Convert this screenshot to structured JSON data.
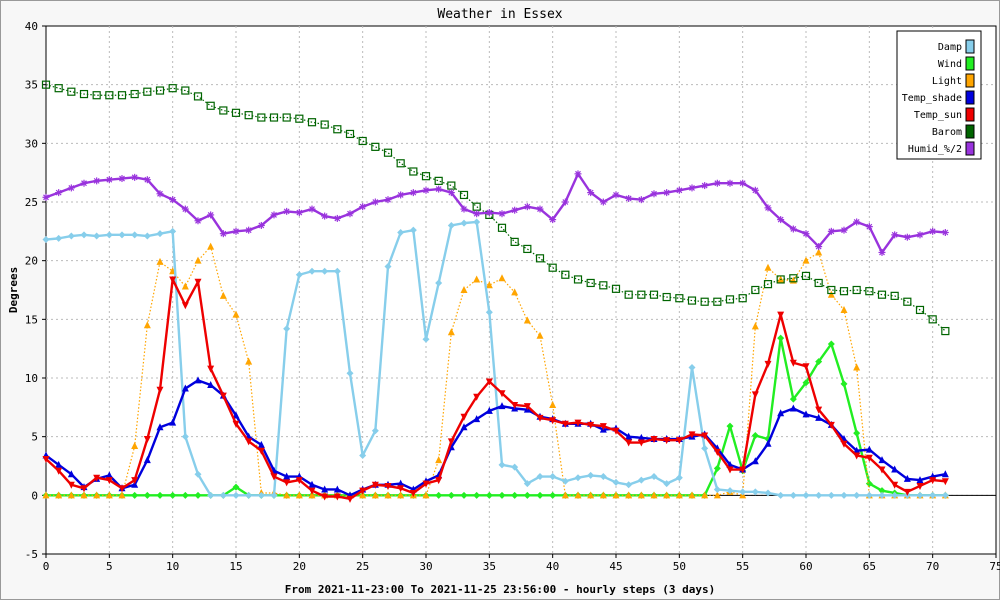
{
  "chart_data": {
    "type": "line",
    "title": "Weather in Essex",
    "xlabel": "From 2021-11-23:00 To 2021-11-25 23:56:00 - hourly steps (3 days)",
    "ylabel": "Degrees",
    "xlim": [
      0,
      75
    ],
    "ylim": [
      -5,
      40
    ],
    "xticks": [
      0,
      5,
      10,
      15,
      20,
      25,
      30,
      35,
      40,
      45,
      50,
      55,
      60,
      65,
      70,
      75
    ],
    "yticks": [
      -5,
      0,
      5,
      10,
      15,
      20,
      25,
      30,
      35,
      40
    ],
    "grid": true,
    "legend_position": "top-right",
    "series": [
      {
        "name": "Damp",
        "color": "#87ceeb",
        "style": "solid",
        "marker": "diamond",
        "values": [
          21.8,
          21.9,
          22.1,
          22.2,
          22.1,
          22.2,
          22.2,
          22.2,
          22.1,
          22.3,
          22.5,
          5.0,
          1.8,
          0.0,
          0.0,
          0.0,
          0.0,
          0.0,
          0.0,
          14.2,
          18.8,
          19.1,
          19.1,
          19.1,
          10.4,
          3.4,
          5.5,
          19.5,
          22.4,
          22.6,
          13.3,
          18.1,
          23.0,
          23.2,
          23.3,
          15.6,
          2.6,
          2.4,
          1.0,
          1.6,
          1.6,
          1.2,
          1.5,
          1.7,
          1.6,
          1.1,
          0.9,
          1.3,
          1.6,
          1.0,
          1.5,
          10.9,
          4.0,
          0.5,
          0.4,
          0.3,
          0.3,
          0.2,
          0.0,
          0.0,
          0.0,
          0.0,
          0.0,
          0.0,
          0.0,
          0.0,
          0.0,
          0.0,
          0.0,
          0.0,
          0.0,
          0.0
        ]
      },
      {
        "name": "Wind",
        "color": "#22ee22",
        "style": "solid",
        "marker": "diamond",
        "values": [
          0.0,
          0.0,
          0.0,
          0.0,
          0.0,
          0.0,
          0.0,
          0.0,
          0.0,
          0.0,
          0.0,
          0.0,
          0.0,
          0.0,
          0.0,
          0.7,
          0.0,
          0.0,
          0.0,
          0.0,
          0.0,
          0.0,
          0.0,
          0.0,
          0.0,
          0.0,
          0.0,
          0.0,
          0.0,
          0.0,
          0.0,
          0.0,
          0.0,
          0.0,
          0.0,
          0.0,
          0.0,
          0.0,
          0.0,
          0.0,
          0.0,
          0.0,
          0.0,
          0.0,
          0.0,
          0.0,
          0.0,
          0.0,
          0.0,
          0.0,
          0.0,
          0.0,
          0.0,
          2.3,
          5.9,
          2.1,
          5.1,
          4.8,
          13.4,
          8.2,
          9.6,
          11.4,
          12.9,
          9.5,
          5.3,
          1.0,
          0.4,
          0.2,
          0.0,
          0.0,
          0.0,
          0.0
        ]
      },
      {
        "name": "Light",
        "color": "#ffa500",
        "style": "dotted",
        "marker": "triangle",
        "values": [
          0.0,
          0.0,
          0.0,
          0.0,
          0.0,
          0.0,
          0.0,
          4.2,
          14.5,
          19.9,
          19.1,
          17.8,
          20.0,
          21.2,
          17.0,
          15.4,
          11.4,
          0.2,
          0.2,
          0.0,
          0.0,
          0.0,
          0.0,
          0.0,
          0.0,
          0.0,
          0.0,
          0.0,
          0.0,
          0.0,
          0.0,
          3.0,
          13.9,
          17.5,
          18.4,
          17.9,
          18.5,
          17.3,
          14.9,
          13.6,
          7.7,
          0.0,
          0.0,
          0.0,
          0.0,
          0.0,
          0.0,
          0.0,
          0.0,
          0.0,
          0.0,
          0.0,
          0.0,
          0.0,
          0.3,
          0.0,
          14.4,
          19.4,
          18.4,
          18.3,
          20.0,
          20.7,
          17.1,
          15.8,
          10.9,
          0.0,
          0.0,
          0.0,
          0.0,
          0.0,
          0.0,
          0.0
        ]
      },
      {
        "name": "Temp_shade",
        "color": "#0000dd",
        "style": "solid",
        "marker": "triangle",
        "values": [
          3.4,
          2.6,
          1.8,
          0.7,
          1.4,
          1.7,
          0.6,
          0.9,
          3.0,
          5.8,
          6.2,
          9.1,
          9.8,
          9.4,
          8.5,
          6.8,
          5.0,
          4.3,
          2.1,
          1.6,
          1.6,
          0.9,
          0.5,
          0.5,
          0.0,
          0.5,
          0.9,
          0.9,
          1.0,
          0.5,
          1.2,
          1.7,
          4.1,
          5.8,
          6.5,
          7.2,
          7.6,
          7.4,
          7.3,
          6.7,
          6.5,
          6.1,
          6.1,
          6.1,
          5.6,
          5.7,
          5.0,
          4.9,
          4.8,
          4.8,
          4.8,
          5.0,
          5.2,
          4.0,
          2.6,
          2.2,
          2.9,
          4.4,
          7.0,
          7.4,
          6.9,
          6.6,
          6.0,
          4.8,
          3.8,
          3.9,
          3.0,
          2.2,
          1.4,
          1.3,
          1.6,
          1.8
        ]
      },
      {
        "name": "Temp_sun",
        "color": "#ee0000",
        "style": "solid",
        "marker": "triangle-down",
        "values": [
          3.1,
          2.1,
          0.9,
          0.6,
          1.5,
          1.3,
          0.6,
          1.3,
          4.8,
          9.0,
          18.4,
          16.2,
          18.2,
          10.8,
          8.5,
          6.1,
          4.6,
          3.8,
          1.6,
          1.1,
          1.3,
          0.4,
          -0.1,
          -0.1,
          -0.3,
          0.4,
          0.9,
          0.8,
          0.6,
          0.2,
          1.0,
          1.3,
          4.6,
          6.7,
          8.4,
          9.7,
          8.7,
          7.7,
          7.6,
          6.6,
          6.4,
          6.1,
          6.2,
          6.0,
          5.9,
          5.5,
          4.5,
          4.5,
          4.8,
          4.7,
          4.7,
          5.2,
          5.1,
          3.7,
          2.2,
          2.2,
          8.6,
          11.2,
          15.4,
          11.3,
          11.0,
          7.3,
          6.0,
          4.4,
          3.4,
          3.2,
          2.2,
          0.9,
          0.3,
          0.8,
          1.3,
          1.2
        ]
      },
      {
        "name": "Barom",
        "color": "#006400",
        "style": "dotted",
        "marker": "square",
        "values": [
          35.0,
          34.7,
          34.4,
          34.2,
          34.1,
          34.1,
          34.1,
          34.2,
          34.4,
          34.5,
          34.7,
          34.5,
          34.0,
          33.2,
          32.8,
          32.6,
          32.4,
          32.2,
          32.2,
          32.2,
          32.1,
          31.8,
          31.6,
          31.2,
          30.8,
          30.2,
          29.7,
          29.2,
          28.3,
          27.6,
          27.2,
          26.8,
          26.4,
          25.6,
          24.6,
          23.9,
          22.8,
          21.6,
          21.0,
          20.2,
          19.4,
          18.8,
          18.4,
          18.1,
          17.9,
          17.6,
          17.1,
          17.1,
          17.1,
          16.9,
          16.8,
          16.6,
          16.5,
          16.5,
          16.7,
          16.8,
          17.5,
          18.0,
          18.4,
          18.5,
          18.7,
          18.1,
          17.5,
          17.4,
          17.5,
          17.4,
          17.1,
          17.0,
          16.5,
          15.8,
          15.0,
          14.0
        ]
      },
      {
        "name": "Humid_%/2",
        "color": "#9933dd",
        "style": "solid",
        "marker": "star",
        "values": [
          25.4,
          25.8,
          26.2,
          26.6,
          26.8,
          26.9,
          27.0,
          27.1,
          26.9,
          25.7,
          25.2,
          24.4,
          23.4,
          23.9,
          22.3,
          22.5,
          22.6,
          23.0,
          23.9,
          24.2,
          24.1,
          24.4,
          23.8,
          23.6,
          24.0,
          24.6,
          25.0,
          25.2,
          25.6,
          25.8,
          26.0,
          26.1,
          25.8,
          24.4,
          24.0,
          24.1,
          24.0,
          24.3,
          24.6,
          24.4,
          23.5,
          25.0,
          27.4,
          25.8,
          25.0,
          25.6,
          25.3,
          25.2,
          25.7,
          25.8,
          26.0,
          26.2,
          26.4,
          26.6,
          26.6,
          26.6,
          26.0,
          24.5,
          23.5,
          22.7,
          22.3,
          21.2,
          22.5,
          22.6,
          23.3,
          22.9,
          20.7,
          22.2,
          22.0,
          22.2,
          22.5,
          22.4
        ]
      }
    ]
  }
}
